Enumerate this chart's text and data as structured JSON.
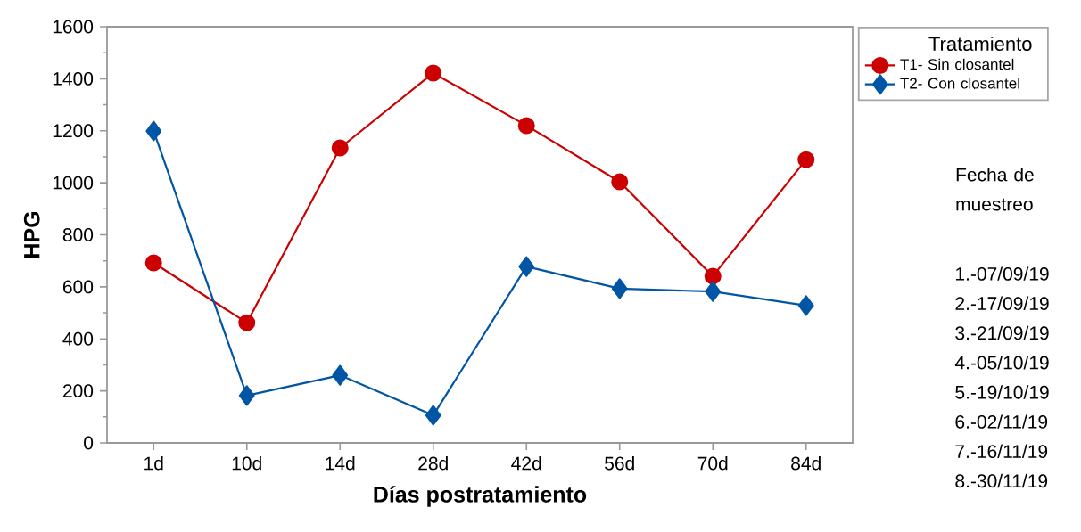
{
  "chart_data": {
    "type": "line",
    "xlabel": "Días postratamiento",
    "ylabel": "HPG",
    "legend_title": "Tratamiento",
    "categories": [
      "1d",
      "10d",
      "14d",
      "28d",
      "42d",
      "56d",
      "70d",
      "84d"
    ],
    "series": [
      {
        "name": "T1- Sin closantel",
        "color": "#cc0000",
        "marker": "circle",
        "values": [
          692,
          462,
          1134,
          1422,
          1220,
          1004,
          641,
          1089
        ]
      },
      {
        "name": "T2- Con closantel",
        "color": "#0055a5",
        "marker": "diamond",
        "values": [
          1199,
          182,
          260,
          106,
          678,
          593,
          582,
          528
        ]
      }
    ],
    "ylim": [
      0,
      1600
    ],
    "yticks": [
      0,
      200,
      400,
      600,
      800,
      1000,
      1200,
      1400,
      1600
    ],
    "grid": false,
    "legend": "top right",
    "line_style": "solid",
    "annotations": [
      "Fecha de muestreo",
      "1.-07/09/19",
      "2.-17/09/19",
      "3.-21/09/19",
      "4.-05/10/19",
      "5.-19/10/19",
      "6.-02/11/19",
      "7.-16/11/19",
      "8.-30/11/19"
    ]
  }
}
